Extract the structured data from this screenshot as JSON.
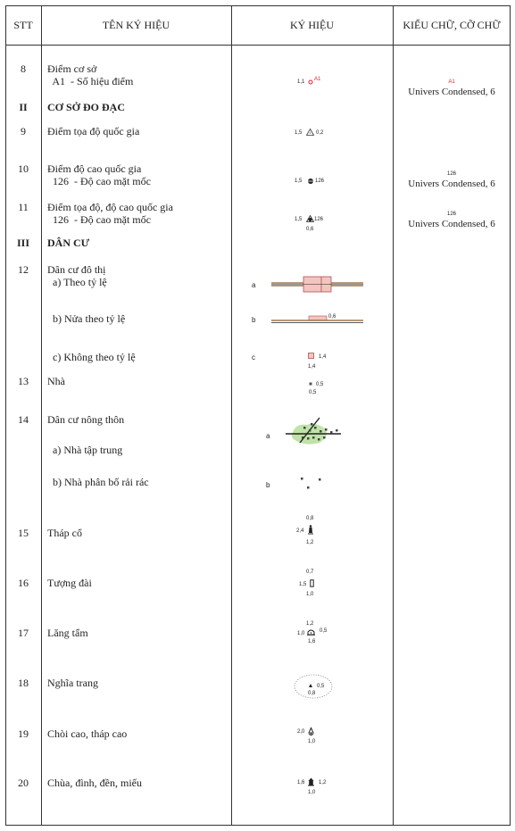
{
  "header": {
    "stt": "STT",
    "name": "TÊN KÝ HIỆU",
    "symbol": "KÝ HIỆU",
    "font": "KIỂU CHỮ, CỠ CHỮ"
  },
  "rows": {
    "r8": {
      "stt": "8",
      "name": "Điểm cơ sở",
      "sub": "  A1  - Số hiệu điểm",
      "dim1": "1,1",
      "label": "A1",
      "font_sample": "A1",
      "font": "Univers Condensed, 6"
    },
    "rII": {
      "stt": "II",
      "name": "CƠ SỞ ĐO ĐẠC"
    },
    "r9": {
      "stt": "9",
      "name": "Điểm tọa độ quốc gia",
      "dim1": "1,5",
      "dim2": "0,2"
    },
    "r10": {
      "stt": "10",
      "name": "Điểm độ cao quốc gia",
      "sub": "  126  - Độ cao mặt mốc",
      "dim1": "1,5",
      "label": "126",
      "font_sample": "126",
      "font": "Univers Condensed, 6"
    },
    "r11": {
      "stt": "11",
      "name": "Điểm tọa độ, độ cao quốc gia",
      "sub": "  126  - Độ cao mặt mốc",
      "dim1": "1,5",
      "label": "126",
      "dim2": "0,6",
      "font_sample": "126",
      "font": "Univers Condensed, 6"
    },
    "rIII": {
      "stt": "III",
      "name": "DÂN CƯ"
    },
    "r12": {
      "stt": "12",
      "name": "Dân cư đô thị",
      "a": "  a) Theo tỷ lệ",
      "b": "  b) Nửa theo tỷ lệ",
      "c": "  c) Không theo tỷ lệ",
      "la": "a",
      "lb": "b",
      "lc": "c",
      "db": "0,6",
      "dc1": "1,4",
      "dc2": "1,4"
    },
    "r13": {
      "stt": "13",
      "name": "Nhà",
      "d1": "0,5",
      "d2": "0,5"
    },
    "r14": {
      "stt": "14",
      "name": "Dân cư nông thôn",
      "a": "  a) Nhà tập trung",
      "b": "  b) Nhà phân bố rải rác",
      "la": "a",
      "lb": "b"
    },
    "r15": {
      "stt": "15",
      "name": "Tháp cổ",
      "top": "0,8",
      "left": "2,4",
      "bottom": "1,2"
    },
    "r16": {
      "stt": "16",
      "name": "Tượng đài",
      "top": "0,7",
      "left": "1,5",
      "bottom": "1,0"
    },
    "r17": {
      "stt": "17",
      "name": "Lăng tẩm",
      "top": "1,2",
      "left": "1,0",
      "right": "0,5",
      "bottom": "1,6"
    },
    "r18": {
      "stt": "18",
      "name": "Nghĩa trang",
      "right": "0,5",
      "bottom": "0,8"
    },
    "r19": {
      "stt": "19",
      "name": "Chòi cao, tháp cao",
      "left": "2,0",
      "bottom": "1,0"
    },
    "r20": {
      "stt": "20",
      "name": "Chùa, đình, đền, miếu",
      "left": "1,6",
      "right": "1,2",
      "bottom": "1,0"
    }
  },
  "colors": {
    "red": "#e0202a",
    "pink_fill": "#f4c4c0",
    "brown_line": "#8b5a2b",
    "green_fill": "#bfe3a8"
  }
}
